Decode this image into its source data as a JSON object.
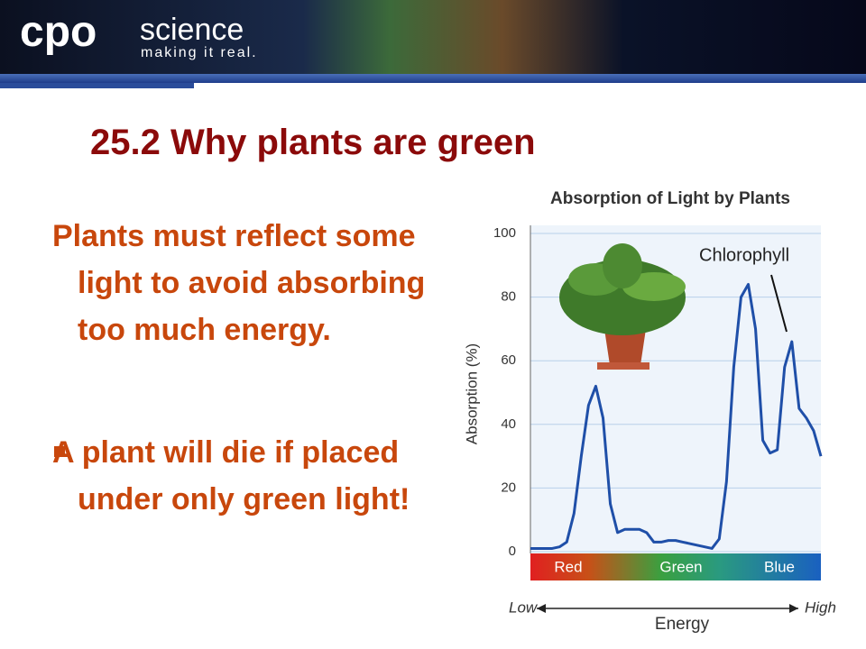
{
  "header": {
    "brand": "cpo",
    "brand_suffix": "science",
    "tagline": "making it real."
  },
  "slide": {
    "title": "25.2 Why plants are green",
    "paragraph": "Plants must reflect some light to avoid absorbing too much energy.",
    "bullets": [
      "A plant will die if placed under only green light!"
    ]
  },
  "chart_data": {
    "type": "line",
    "title": "Absorption of Light by Plants",
    "y_label": "Absorption (%)",
    "x_label": "Energy",
    "x_low": "Low",
    "x_high": "High",
    "bands": [
      "Red",
      "Green",
      "Blue"
    ],
    "annotation": "Chlorophyll",
    "categories": [
      null,
      null,
      null,
      null,
      null,
      null,
      null,
      null,
      null,
      null,
      null,
      null,
      null,
      null,
      null,
      null,
      null,
      null,
      null,
      null,
      null,
      null,
      null,
      null,
      null,
      null,
      null,
      null,
      null,
      null,
      null,
      null,
      null,
      null,
      null,
      null,
      null,
      null,
      null,
      null,
      null
    ],
    "series": [
      {
        "name": "Chlorophyll",
        "color": "#1f4fa8",
        "values": [
          1,
          1,
          1,
          1,
          1.5,
          3,
          12,
          30,
          46,
          52,
          42,
          15,
          6,
          7,
          7,
          7,
          6,
          3,
          3,
          3.5,
          3.5,
          3,
          2.5,
          2,
          1.5,
          1,
          4,
          22,
          58,
          80,
          84,
          70,
          35,
          31,
          32,
          58,
          66,
          45,
          42,
          38,
          30
        ]
      }
    ],
    "ylim": [
      0,
      100
    ],
    "yticks": [
      0,
      20,
      40,
      60,
      80,
      100
    ],
    "grid": true
  }
}
